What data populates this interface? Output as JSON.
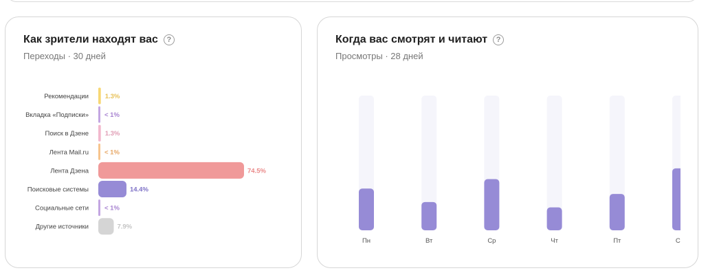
{
  "chart_data": [
    {
      "type": "bar",
      "orientation": "horizontal",
      "title": "Как зрители находят вас",
      "subtitle": "Переходы · 30 дней",
      "categories": [
        "Рекомендации",
        "Вкладка «Подписки»",
        "Поиск в Дзене",
        "Лента Mail.ru",
        "Лента Дзена",
        "Поисковые системы",
        "Социальные сети",
        "Другие источники"
      ],
      "values": [
        1.3,
        0.5,
        1.3,
        0.5,
        74.5,
        14.4,
        0.5,
        7.9
      ],
      "value_labels": [
        "1.3%",
        "< 1%",
        "1.3%",
        "< 1%",
        "74.5%",
        "14.4%",
        "< 1%",
        "7.9%"
      ],
      "colors": [
        "#f7d774",
        "#c3a6e2",
        "#f2b8cd",
        "#f7c48d",
        "#f09999",
        "#968bd6",
        "#c3a6e2",
        "#d5d5d5"
      ],
      "value_colors": [
        "#e8c25a",
        "#a884d1",
        "#e09db5",
        "#e7a866",
        "#ea8a8a",
        "#7f73c7",
        "#a884d1",
        "#c4c4c4"
      ],
      "xlim": [
        0,
        74.5
      ]
    },
    {
      "type": "bar",
      "title": "Когда вас смотрят и читают",
      "subtitle": "Просмотры · 28 дней",
      "categories": [
        "Пн",
        "Вт",
        "Ср",
        "Чт",
        "Пт",
        "Сб"
      ],
      "values": [
        31,
        21,
        38,
        17,
        27,
        46
      ],
      "ylim": [
        0,
        100
      ],
      "bar_color": "#968bd6",
      "track_color": "#f5f5fb"
    }
  ]
}
